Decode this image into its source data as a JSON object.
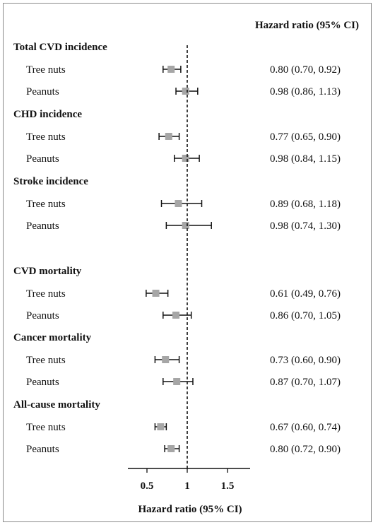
{
  "chart_data": {
    "type": "forest",
    "column_header": "Hazard ratio (95% CI)",
    "xlabel": "Hazard ratio (95% CI)",
    "xlim": [
      0.25,
      1.75
    ],
    "xticks": [
      "0.5",
      "1",
      "1.5"
    ],
    "reference_line": 1,
    "marker_color": "#a6a6a6",
    "groups": [
      {
        "name": "Total CVD incidence",
        "rows": [
          {
            "label": "Tree nuts",
            "hr": 0.8,
            "lo": 0.7,
            "hi": 0.92,
            "text": "0.80 (0.70, 0.92)"
          },
          {
            "label": "Peanuts",
            "hr": 0.98,
            "lo": 0.86,
            "hi": 1.13,
            "text": "0.98 (0.86, 1.13)"
          }
        ]
      },
      {
        "name": "CHD incidence",
        "rows": [
          {
            "label": "Tree nuts",
            "hr": 0.77,
            "lo": 0.65,
            "hi": 0.9,
            "text": "0.77 (0.65, 0.90)"
          },
          {
            "label": "Peanuts",
            "hr": 0.98,
            "lo": 0.84,
            "hi": 1.15,
            "text": "0.98 (0.84, 1.15)"
          }
        ]
      },
      {
        "name": "Stroke incidence",
        "rows": [
          {
            "label": "Tree nuts",
            "hr": 0.89,
            "lo": 0.68,
            "hi": 1.18,
            "text": "0.89 (0.68, 1.18)"
          },
          {
            "label": "Peanuts",
            "hr": 0.98,
            "lo": 0.74,
            "hi": 1.3,
            "text": "0.98 (0.74, 1.30)"
          }
        ]
      },
      {
        "name": "CVD mortality",
        "rows": [
          {
            "label": "Tree nuts",
            "hr": 0.61,
            "lo": 0.49,
            "hi": 0.76,
            "text": "0.61 (0.49, 0.76)"
          },
          {
            "label": "Peanuts",
            "hr": 0.86,
            "lo": 0.7,
            "hi": 1.05,
            "text": "0.86 (0.70, 1.05)"
          }
        ]
      },
      {
        "name": "Cancer mortality",
        "rows": [
          {
            "label": "Tree nuts",
            "hr": 0.73,
            "lo": 0.6,
            "hi": 0.9,
            "text": "0.73 (0.60, 0.90)"
          },
          {
            "label": "Peanuts",
            "hr": 0.87,
            "lo": 0.7,
            "hi": 1.07,
            "text": "0.87 (0.70, 1.07)"
          }
        ]
      },
      {
        "name": "All-cause mortality",
        "rows": [
          {
            "label": "Tree nuts",
            "hr": 0.67,
            "lo": 0.6,
            "hi": 0.74,
            "text": "0.67 (0.60, 0.74)"
          },
          {
            "label": "Peanuts",
            "hr": 0.8,
            "lo": 0.72,
            "hi": 0.9,
            "text": "0.80 (0.72, 0.90)"
          }
        ]
      }
    ]
  }
}
